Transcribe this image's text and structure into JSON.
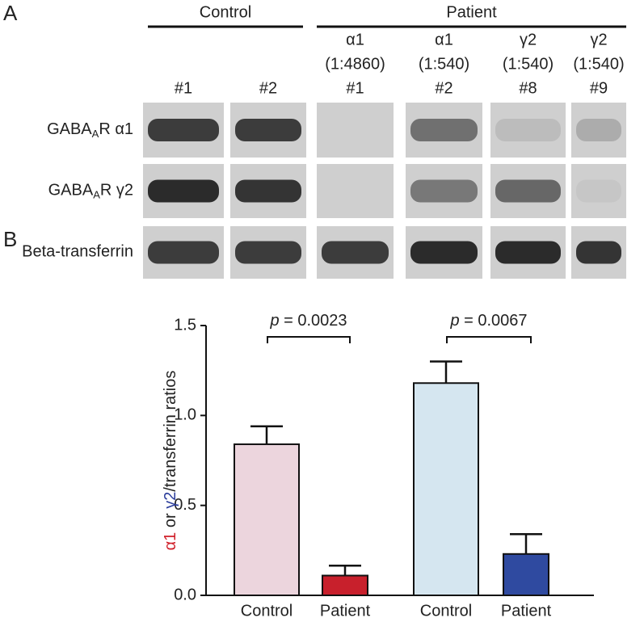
{
  "panel_a": {
    "label": "A",
    "groups": [
      "Control",
      "Patient"
    ],
    "lanes": [
      [
        "#1"
      ],
      [
        "#2"
      ],
      [
        "α1",
        "(1:4860)",
        "#1"
      ],
      [
        "α1",
        "(1:540)",
        "#2"
      ],
      [
        "γ2",
        "(1:540)",
        "#8"
      ],
      [
        "γ2",
        "(1:540)",
        "#9"
      ]
    ],
    "rows": [
      {
        "prefix": "GABA",
        "sub": "A",
        "suffix": "R α1"
      },
      {
        "prefix": "GABA",
        "sub": "A",
        "suffix": "R γ2"
      },
      {
        "prefix": "Beta-transferrin"
      }
    ]
  },
  "chart_data": {
    "type": "bar",
    "panel_label": "B",
    "ylabel_parts": [
      {
        "text": "α1",
        "color": "#d0202a"
      },
      {
        "text": " or ",
        "color": "#222222"
      },
      {
        "text": "γ2",
        "color": "#2b3d9b"
      },
      {
        "text": "/transferrin ratios",
        "color": "#222222"
      }
    ],
    "categories": [
      "Control",
      "Patient",
      "Control",
      "Patient"
    ],
    "values": [
      0.84,
      0.11,
      1.18,
      0.23
    ],
    "errors": [
      0.1,
      0.055,
      0.12,
      0.11
    ],
    "colors": [
      "#ecd5dd",
      "#c8202c",
      "#d5e6f0",
      "#2f4aa0"
    ],
    "ylim": [
      0,
      1.5
    ],
    "yticks": [
      {
        "value": 0,
        "label": "0.0"
      },
      {
        "value": 0.5,
        "label": "0.5"
      },
      {
        "value": 1,
        "label": "1.0"
      },
      {
        "value": 1.5,
        "label": "1.5"
      }
    ],
    "annotations": [
      {
        "p": "p",
        "text": " =  0.0023"
      },
      {
        "p": "p",
        "text": " = 0.0067"
      }
    ]
  }
}
